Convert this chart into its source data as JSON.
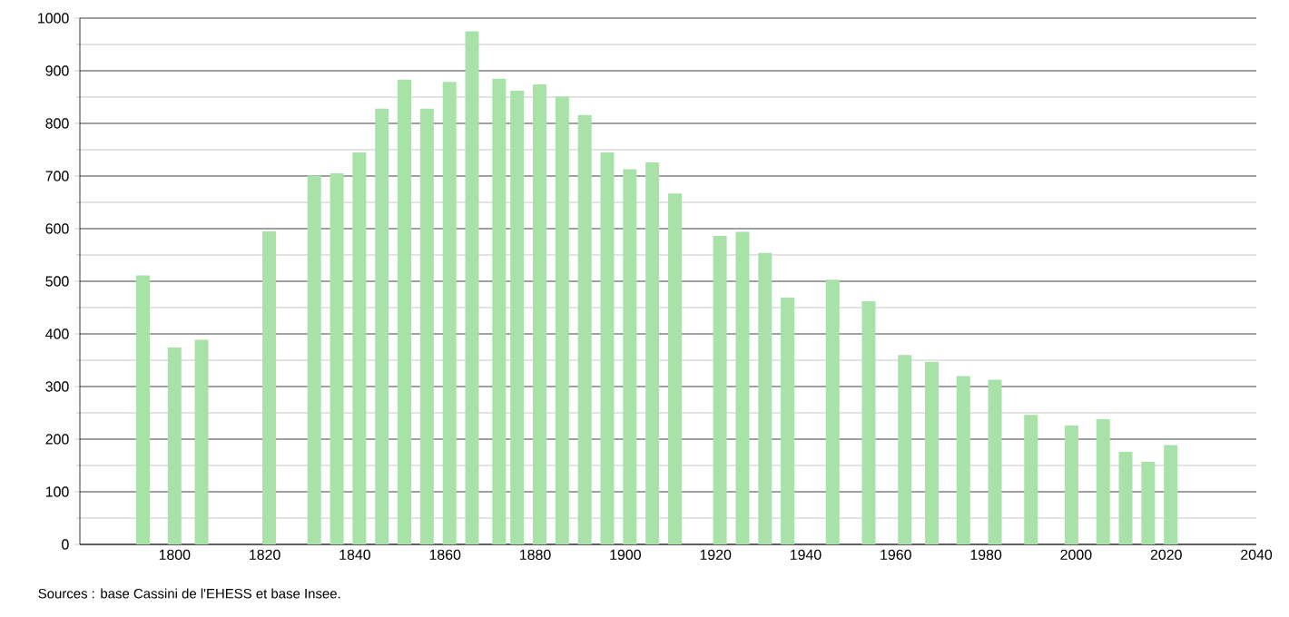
{
  "chart_data": {
    "type": "bar",
    "x": [
      1793,
      1800,
      1806,
      1821,
      1831,
      1836,
      1841,
      1846,
      1851,
      1856,
      1861,
      1866,
      1872,
      1876,
      1881,
      1886,
      1891,
      1896,
      1901,
      1906,
      1911,
      1921,
      1926,
      1931,
      1936,
      1946,
      1954,
      1962,
      1968,
      1975,
      1982,
      1990,
      1999,
      2006,
      2011,
      2016,
      2021
    ],
    "values": [
      511,
      374,
      389,
      595,
      701,
      705,
      745,
      828,
      883,
      828,
      879,
      975,
      885,
      862,
      874,
      851,
      816,
      745,
      713,
      726,
      667,
      586,
      594,
      554,
      469,
      503,
      462,
      360,
      347,
      320,
      313,
      246,
      226,
      238,
      176,
      157,
      189
    ],
    "color": "#a8e2a8",
    "xlim": [
      1779,
      2040
    ],
    "xticks": [
      1800,
      1820,
      1840,
      1860,
      1880,
      1900,
      1920,
      1940,
      1960,
      1980,
      2000,
      2020,
      2040
    ],
    "ylim": [
      0,
      1000
    ],
    "yticks": [
      0,
      100,
      200,
      300,
      400,
      500,
      600,
      700,
      800,
      900,
      1000
    ],
    "grid": "y",
    "annotations": [
      "Sources : base Cassini de l'EHESS et base Insee."
    ]
  }
}
